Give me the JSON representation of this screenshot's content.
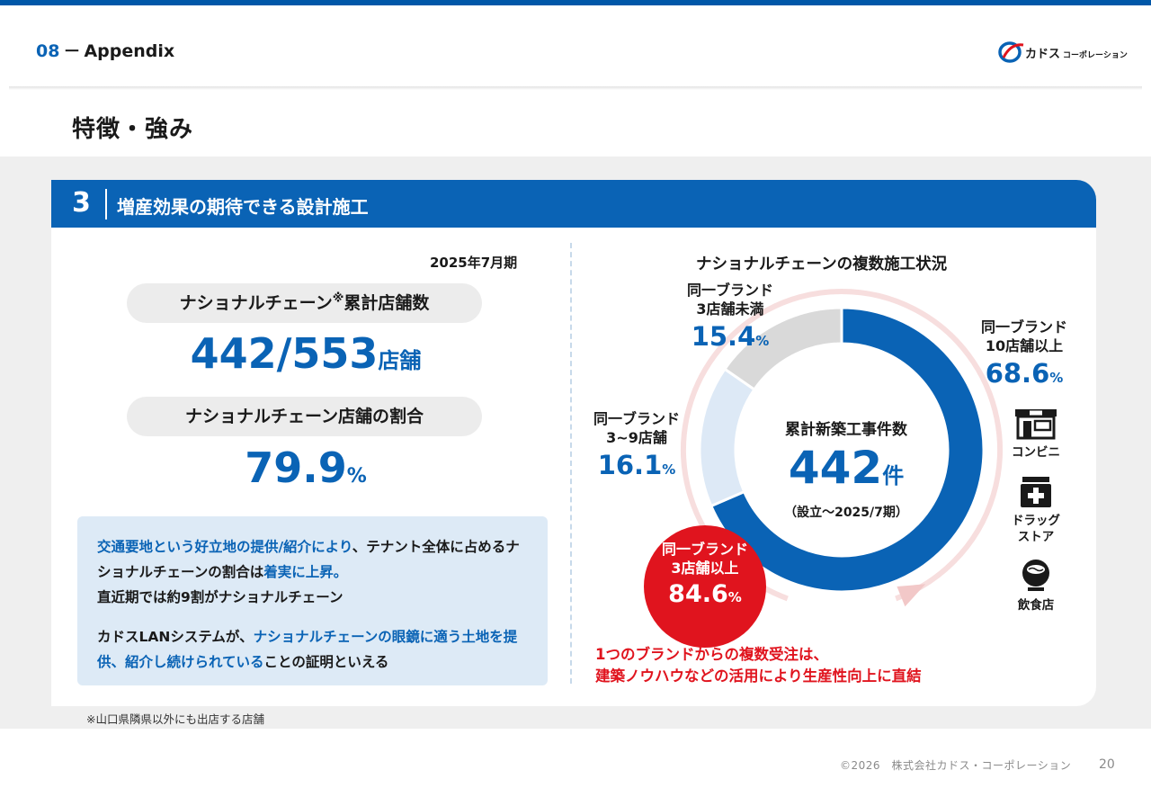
{
  "header": {
    "section_num": "08",
    "section_dash": "－",
    "section_name": "Appendix",
    "logo_text": "カドスコーポレーション"
  },
  "page_title": "特徴・強み",
  "card": {
    "number": "3",
    "title": "増産効果の期待できる設計施工"
  },
  "left": {
    "period": "2025年7月期",
    "pill1_main": "ナショナルチェーン",
    "pill1_sup": "※",
    "pill1_rest": "累計店舗数",
    "stat1_value": "442/553",
    "stat1_unit": "店舗",
    "pill2": "ナショナルチェーン店舗の割合",
    "stat2_value": "79.9",
    "stat2_unit": "%",
    "desc_p1_a": "交通要地という好立地の提供/紹介により",
    "desc_p1_b": "、テナント全体に占めるナショナルチェーンの割合は",
    "desc_p1_c": "着実に上昇。",
    "desc_p1_d": "直近期では約9割がナショナルチェーン",
    "desc_p2_a": "カドスLANシステムが、",
    "desc_p2_b": "ナショナルチェーンの眼鏡に適う土地を提供、紹介し続けられている",
    "desc_p2_c": "ことの証明といえる"
  },
  "right": {
    "chart_title": "ナショナルチェーンの複数施工状況",
    "center_title": "累計新築工事件数",
    "center_value": "442",
    "center_unit": "件",
    "center_sub": "（設立～2025/7期）",
    "label_a_1": "同一ブランド",
    "label_a_2": "10店舗以上",
    "label_a_pct": "68.6",
    "label_b_1": "同一ブランド",
    "label_b_2": "3~9店舗",
    "label_b_pct": "16.1",
    "label_c_1": "同一ブランド",
    "label_c_2": "3店舗未満",
    "label_c_pct": "15.4",
    "pct_unit": "%",
    "red_1": "同一ブランド",
    "red_2": "3店舗以上",
    "red_pct": "84.6",
    "red_note_1": "1つのブランドからの複数受注は、",
    "red_note_2": "建築ノウハウなどの活用により生産性向上に直結",
    "icons": [
      {
        "name": "store-icon",
        "label": "コンビニ"
      },
      {
        "name": "pharmacy-icon",
        "label_1": "ドラッグ",
        "label_2": "ストア"
      },
      {
        "name": "bowl-icon",
        "label": "飲食店"
      }
    ]
  },
  "chart_data": {
    "type": "pie",
    "title": "ナショナルチェーンの複数施工状況",
    "categories": [
      "同一ブランド 10店舗以上",
      "同一ブランド 3~9店舗",
      "同一ブランド 3店舗未満"
    ],
    "values": [
      68.6,
      16.1,
      15.4
    ],
    "unit": "%",
    "colors": [
      "#0a63b5",
      "#dde9f6",
      "#d9d9d9"
    ],
    "total_label": "累計新築工事件数",
    "total": 442
  },
  "footnote": "※山口県隣県以外にも出店する店舗",
  "copyright": "©2026　株式会社カドス・コーポレーション",
  "page_number": "20",
  "colors": {
    "primary_blue": "#0a63b5",
    "accent_red": "#e0141e",
    "light_blue": "#ddeaf6",
    "gray_band": "#efefef"
  }
}
